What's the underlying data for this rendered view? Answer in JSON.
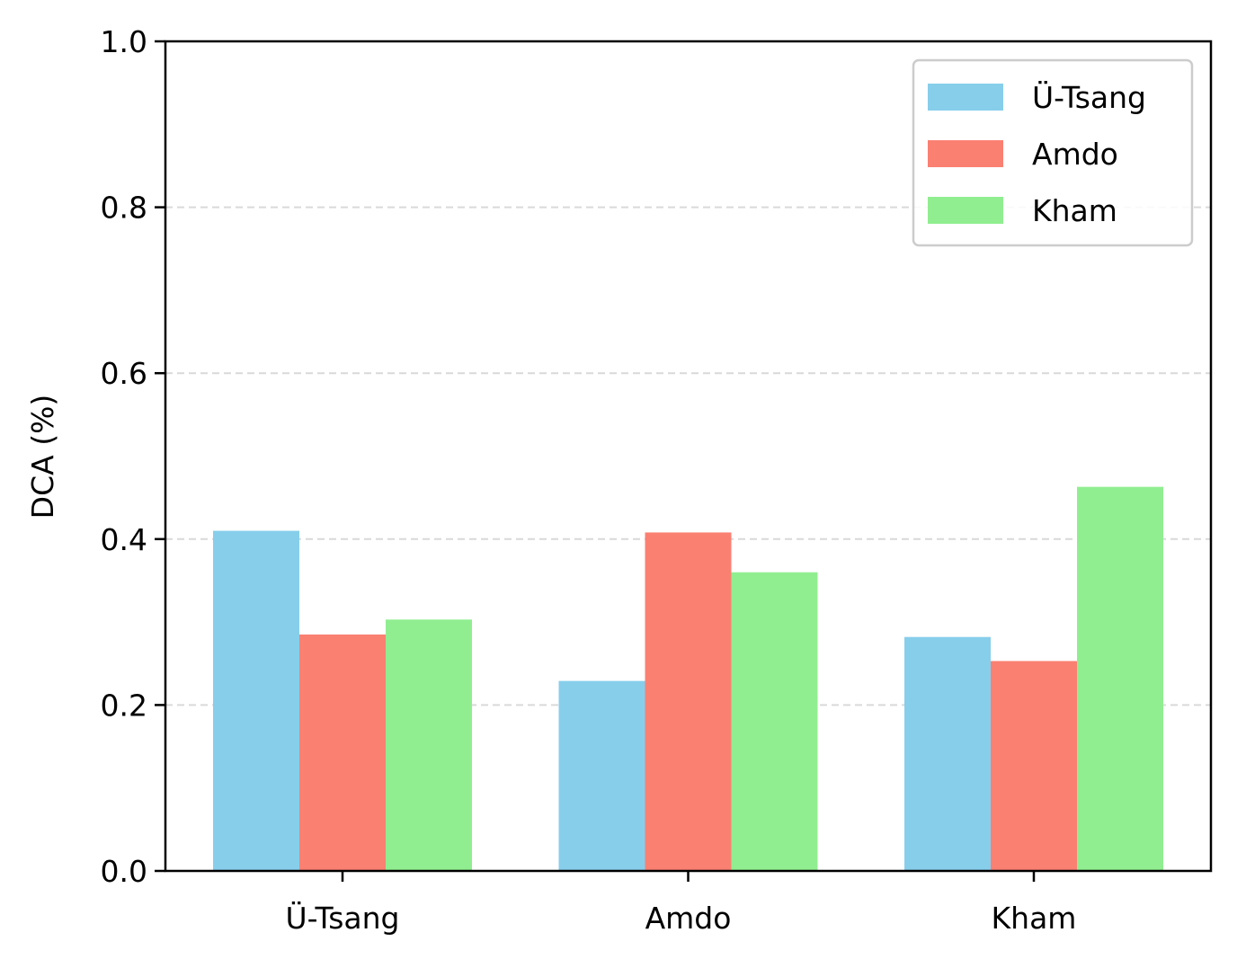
{
  "chart_data": {
    "type": "bar",
    "title": "",
    "xlabel": "",
    "ylabel": "DCA (%)",
    "ylim": [
      0,
      1.0
    ],
    "yticks": [
      "0.0",
      "0.2",
      "0.4",
      "0.6",
      "0.8",
      "1.0"
    ],
    "categories": [
      "Ü-Tsang",
      "Amdo",
      "Kham"
    ],
    "series": [
      {
        "name": "Ü-Tsang",
        "color": "#87CEEB",
        "values": [
          0.41,
          0.229,
          0.282
        ]
      },
      {
        "name": "Amdo",
        "color": "#FA8072",
        "values": [
          0.285,
          0.408,
          0.253
        ]
      },
      {
        "name": "Kham",
        "color": "#90EE90",
        "values": [
          0.303,
          0.36,
          0.463
        ]
      }
    ],
    "grid": "y-dashed",
    "legend_position": "top-right"
  }
}
